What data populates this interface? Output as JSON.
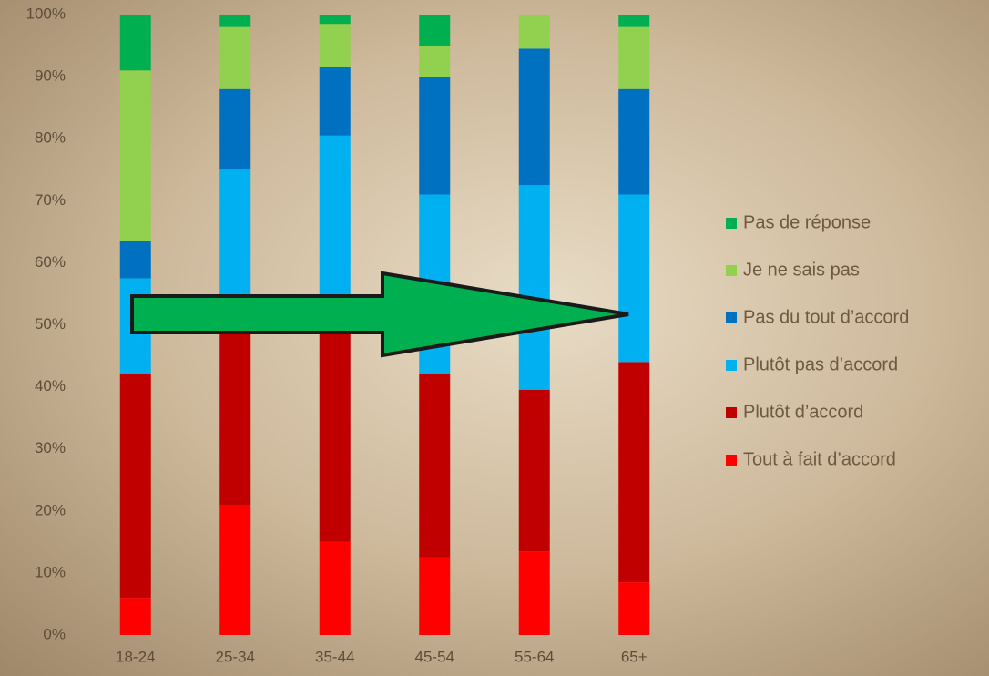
{
  "chart_data": {
    "type": "stacked_bar",
    "categories": [
      "18-24",
      "25-34",
      "35-44",
      "45-54",
      "55-64",
      "65+"
    ],
    "series": [
      {
        "name": "Tout à fait d’accord",
        "color": "#ff0000",
        "values": [
          6,
          21,
          15,
          12.5,
          13.5,
          8.5
        ]
      },
      {
        "name": "Plutôt d’accord",
        "color": "#c00000",
        "values": [
          36,
          29,
          35,
          29.5,
          26,
          35.5
        ]
      },
      {
        "name": "Plutôt pas d’accord",
        "color": "#00b0f0",
        "values": [
          15.5,
          25,
          30.5,
          29,
          33,
          27
        ]
      },
      {
        "name": "Pas du tout d’accord",
        "color": "#0070c0",
        "values": [
          6,
          13,
          11,
          19,
          22,
          17
        ]
      },
      {
        "name": "Je ne sais pas",
        "color": "#92d050",
        "values": [
          27.5,
          10,
          7,
          5,
          5.5,
          10
        ]
      },
      {
        "name": "Pas de réponse",
        "color": "#00b050",
        "values": [
          9,
          2,
          1.5,
          5,
          0,
          2
        ]
      }
    ],
    "ylim": [
      0,
      100
    ],
    "yticks": [
      {
        "value": 0,
        "label": "0%"
      },
      {
        "value": 10,
        "label": "10%"
      },
      {
        "value": 20,
        "label": "20%"
      },
      {
        "value": 30,
        "label": "30%"
      },
      {
        "value": 40,
        "label": "40%"
      },
      {
        "value": 50,
        "label": "50%"
      },
      {
        "value": 60,
        "label": "60%"
      },
      {
        "value": 70,
        "label": "70%"
      },
      {
        "value": 80,
        "label": "80%"
      },
      {
        "value": 90,
        "label": "90%"
      },
      {
        "value": 100,
        "label": "100%"
      }
    ],
    "legend": "right",
    "grid": false
  }
}
